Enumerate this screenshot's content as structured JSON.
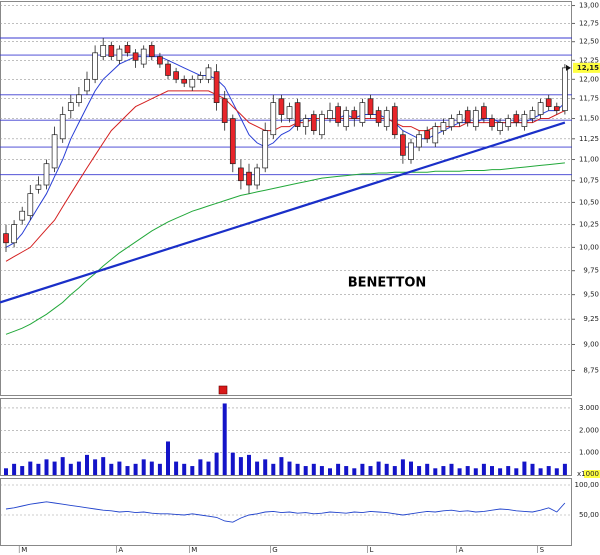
{
  "chart_data": {
    "type": "candlestick",
    "title": "BENETTON",
    "categories": [
      null,
      null,
      "M",
      null,
      null,
      null,
      null,
      null,
      null,
      null,
      null,
      null,
      null,
      null,
      "A",
      null,
      null,
      null,
      null,
      null,
      null,
      null,
      null,
      "M",
      null,
      null,
      null,
      null,
      null,
      null,
      null,
      null,
      null,
      "G",
      null,
      null,
      null,
      null,
      null,
      null,
      null,
      null,
      null,
      null,
      null,
      "L",
      null,
      null,
      null,
      null,
      null,
      null,
      null,
      null,
      null,
      null,
      "A",
      null,
      null,
      null,
      null,
      null,
      null,
      null,
      null,
      null,
      "S",
      null,
      null,
      null
    ],
    "open": [
      10.15,
      10.05,
      10.3,
      10.35,
      10.65,
      10.7,
      10.9,
      11.25,
      11.6,
      11.7,
      11.85,
      12.0,
      12.3,
      12.45,
      12.25,
      12.45,
      12.35,
      12.2,
      12.45,
      12.3,
      12.2,
      12.1,
      12.0,
      11.9,
      12.0,
      12.0,
      12.1,
      11.75,
      11.5,
      10.9,
      10.85,
      10.7,
      10.9,
      11.3,
      11.75,
      11.5,
      11.7,
      11.4,
      11.55,
      11.3,
      11.5,
      11.65,
      11.4,
      11.6,
      11.45,
      11.75,
      11.6,
      11.4,
      11.65,
      11.3,
      11.0,
      11.15,
      11.35,
      11.2,
      11.35,
      11.4,
      11.45,
      11.6,
      11.4,
      11.65,
      11.5,
      11.35,
      11.4,
      11.55,
      11.4,
      11.5,
      11.55,
      11.75,
      11.65,
      11.6
    ],
    "high": [
      10.25,
      10.3,
      10.45,
      10.7,
      10.8,
      11.0,
      11.4,
      11.65,
      11.8,
      11.9,
      12.1,
      12.45,
      12.55,
      12.5,
      12.45,
      12.5,
      12.4,
      12.45,
      12.5,
      12.35,
      12.25,
      12.15,
      12.05,
      12.05,
      12.1,
      12.2,
      12.2,
      11.85,
      11.55,
      11.0,
      10.95,
      10.95,
      11.45,
      11.8,
      11.8,
      11.7,
      11.75,
      11.55,
      11.6,
      11.6,
      11.7,
      11.7,
      11.65,
      11.65,
      11.75,
      11.8,
      11.65,
      11.65,
      11.7,
      11.35,
      11.25,
      11.35,
      11.4,
      11.45,
      11.5,
      11.55,
      11.6,
      11.65,
      11.65,
      11.7,
      11.55,
      11.5,
      11.55,
      11.6,
      11.6,
      11.65,
      11.75,
      11.8,
      11.7,
      12.2
    ],
    "low": [
      9.95,
      10.0,
      10.25,
      10.3,
      10.6,
      10.65,
      10.85,
      11.2,
      11.5,
      11.65,
      11.8,
      11.95,
      12.25,
      12.25,
      12.2,
      12.3,
      12.15,
      12.15,
      12.25,
      12.15,
      12.0,
      11.95,
      11.9,
      11.85,
      11.95,
      11.95,
      11.6,
      11.35,
      10.85,
      10.65,
      10.6,
      10.65,
      10.85,
      11.25,
      11.45,
      11.45,
      11.35,
      11.3,
      11.3,
      11.25,
      11.45,
      11.4,
      11.35,
      11.4,
      11.4,
      11.5,
      11.4,
      11.35,
      11.25,
      10.95,
      10.95,
      11.1,
      11.2,
      11.15,
      11.3,
      11.35,
      11.4,
      11.4,
      11.35,
      11.45,
      11.35,
      11.3,
      11.35,
      11.4,
      11.35,
      11.45,
      11.5,
      11.6,
      11.55,
      11.55
    ],
    "close": [
      10.05,
      10.25,
      10.4,
      10.6,
      10.7,
      10.95,
      11.3,
      11.55,
      11.7,
      11.8,
      12.0,
      12.35,
      12.45,
      12.3,
      12.4,
      12.35,
      12.25,
      12.4,
      12.3,
      12.2,
      12.05,
      12.0,
      11.95,
      12.0,
      12.05,
      12.15,
      11.7,
      11.45,
      10.95,
      10.75,
      10.7,
      10.9,
      11.35,
      11.7,
      11.55,
      11.65,
      11.4,
      11.5,
      11.35,
      11.55,
      11.6,
      11.45,
      11.6,
      11.5,
      11.7,
      11.55,
      11.45,
      11.6,
      11.3,
      11.05,
      11.2,
      11.3,
      11.25,
      11.4,
      11.45,
      11.5,
      11.55,
      11.45,
      11.6,
      11.5,
      11.4,
      11.45,
      11.5,
      11.45,
      11.55,
      11.6,
      11.7,
      11.65,
      11.6,
      12.15
    ],
    "up_color": "#ffffff",
    "down_color": "#e8252a",
    "ylim": [
      8.52,
      13.05
    ],
    "log_scale": true,
    "grid": true,
    "yticks": [
      {
        "value": 13,
        "label": "13,00"
      },
      {
        "value": 12.75,
        "label": "12,75"
      },
      {
        "value": 12.5,
        "label": "12,50"
      },
      {
        "value": 12.25,
        "label": "12,25"
      },
      {
        "value": 12,
        "label": "12,00"
      },
      {
        "value": 11.75,
        "label": "11,75"
      },
      {
        "value": 11.5,
        "label": "11,50"
      },
      {
        "value": 11.25,
        "label": "11,25"
      },
      {
        "value": 11,
        "label": "11,00"
      },
      {
        "value": 10.75,
        "label": "10,75"
      },
      {
        "value": 10.5,
        "label": "10,50"
      },
      {
        "value": 10.25,
        "label": "10,25"
      },
      {
        "value": 10,
        "label": "10,00"
      },
      {
        "value": 9.75,
        "label": "9,75"
      },
      {
        "value": 9.5,
        "label": "9,50"
      },
      {
        "value": 9.25,
        "label": "9,25"
      },
      {
        "value": 9,
        "label": "9,00"
      },
      {
        "value": 8.75,
        "label": "8,75"
      }
    ],
    "moving_averages": [
      {
        "color": "#2a3fd6",
        "values": [
          10.0,
          10.05,
          10.15,
          10.3,
          10.45,
          10.6,
          10.8,
          11.0,
          11.25,
          11.45,
          11.65,
          11.85,
          12.0,
          12.1,
          12.2,
          12.25,
          12.3,
          12.3,
          12.3,
          12.3,
          12.25,
          12.2,
          12.15,
          12.1,
          12.05,
          12.05,
          12.0,
          11.9,
          11.7,
          11.5,
          11.3,
          11.2,
          11.15,
          11.2,
          11.3,
          11.35,
          11.45,
          11.5,
          11.5,
          11.5,
          11.5,
          11.5,
          11.55,
          11.5,
          11.55,
          11.55,
          11.55,
          11.5,
          11.45,
          11.35,
          11.3,
          11.25,
          11.25,
          11.3,
          11.35,
          11.4,
          11.45,
          11.45,
          11.45,
          11.5,
          11.5,
          11.45,
          11.45,
          11.45,
          11.45,
          11.5,
          11.55,
          11.6,
          11.6,
          11.7
        ]
      },
      {
        "color": "#d42020",
        "values": [
          9.85,
          9.9,
          9.95,
          10.0,
          10.1,
          10.2,
          10.3,
          10.45,
          10.6,
          10.75,
          10.9,
          11.05,
          11.2,
          11.35,
          11.45,
          11.55,
          11.65,
          11.7,
          11.75,
          11.8,
          11.85,
          11.85,
          11.85,
          11.85,
          11.85,
          11.85,
          11.8,
          11.75,
          11.65,
          11.55,
          11.45,
          11.4,
          11.35,
          11.35,
          11.4,
          11.4,
          11.45,
          11.45,
          11.5,
          11.5,
          11.5,
          11.5,
          11.5,
          11.5,
          11.5,
          11.5,
          11.5,
          11.5,
          11.45,
          11.4,
          11.4,
          11.35,
          11.35,
          11.4,
          11.4,
          11.4,
          11.4,
          11.45,
          11.45,
          11.45,
          11.45,
          11.45,
          11.45,
          11.45,
          11.45,
          11.45,
          11.5,
          11.5,
          11.55,
          11.6
        ]
      },
      {
        "color": "#22a83a",
        "values": [
          9.1,
          9.13,
          9.16,
          9.2,
          9.25,
          9.3,
          9.36,
          9.42,
          9.5,
          9.57,
          9.65,
          9.72,
          9.8,
          9.87,
          9.94,
          10.0,
          10.06,
          10.12,
          10.18,
          10.23,
          10.28,
          10.32,
          10.36,
          10.4,
          10.43,
          10.46,
          10.49,
          10.52,
          10.55,
          10.58,
          10.6,
          10.62,
          10.64,
          10.66,
          10.68,
          10.7,
          10.72,
          10.74,
          10.76,
          10.78,
          10.79,
          10.8,
          10.81,
          10.82,
          10.83,
          10.83,
          10.84,
          10.84,
          10.85,
          10.85,
          10.85,
          10.85,
          10.85,
          10.86,
          10.86,
          10.86,
          10.86,
          10.87,
          10.87,
          10.87,
          10.88,
          10.88,
          10.89,
          10.9,
          10.91,
          10.92,
          10.93,
          10.94,
          10.95,
          10.96
        ]
      }
    ],
    "levels": {
      "color": "#3a3ad0",
      "values": [
        12.55,
        12.32,
        11.8,
        11.48,
        11.15,
        10.82
      ]
    },
    "trendline": {
      "color": "#1a2fc8",
      "values": [
        9.42,
        11.45
      ]
    },
    "last_price": {
      "value": 12.15,
      "label": "12,15"
    },
    "volume": {
      "color": "#1414c8",
      "unit": "x1000",
      "ylim": [
        0,
        3.4
      ],
      "yticks": [
        {
          "value": 3,
          "label": "3.000"
        },
        {
          "value": 2,
          "label": "2.000"
        },
        {
          "value": 1,
          "label": "1.000"
        }
      ],
      "values": [
        0.3,
        0.5,
        0.4,
        0.6,
        0.5,
        0.7,
        0.6,
        0.8,
        0.5,
        0.6,
        0.9,
        0.7,
        0.8,
        0.5,
        0.6,
        0.4,
        0.5,
        0.7,
        0.6,
        0.5,
        1.5,
        0.6,
        0.5,
        0.4,
        0.7,
        0.6,
        1.0,
        3.2,
        1.0,
        0.8,
        0.9,
        0.6,
        0.7,
        0.5,
        0.8,
        0.6,
        0.5,
        0.4,
        0.5,
        0.4,
        0.3,
        0.5,
        0.4,
        0.3,
        0.5,
        0.4,
        0.6,
        0.5,
        0.4,
        0.7,
        0.6,
        0.4,
        0.5,
        0.3,
        0.4,
        0.5,
        0.3,
        0.4,
        0.3,
        0.5,
        0.4,
        0.3,
        0.4,
        0.3,
        0.6,
        0.5,
        0.3,
        0.4,
        0.3,
        0.5
      ]
    },
    "oscillator": {
      "color": "#2244cc",
      "ylim": [
        0,
        110
      ],
      "yticks": [
        {
          "value": 100,
          "label": "100,00"
        },
        {
          "value": 50,
          "label": "50,00"
        }
      ],
      "values": [
        60,
        62,
        65,
        68,
        70,
        72,
        70,
        68,
        66,
        64,
        62,
        60,
        58,
        57,
        55,
        56,
        54,
        55,
        53,
        52,
        52,
        51,
        50,
        52,
        50,
        48,
        46,
        40,
        38,
        45,
        50,
        52,
        55,
        56,
        54,
        55,
        53,
        54,
        52,
        53,
        55,
        54,
        53,
        55,
        54,
        56,
        55,
        54,
        52,
        50,
        52,
        54,
        56,
        55,
        57,
        58,
        56,
        57,
        55,
        56,
        58,
        60,
        59,
        57,
        56,
        55,
        58,
        62,
        55,
        70
      ]
    }
  }
}
